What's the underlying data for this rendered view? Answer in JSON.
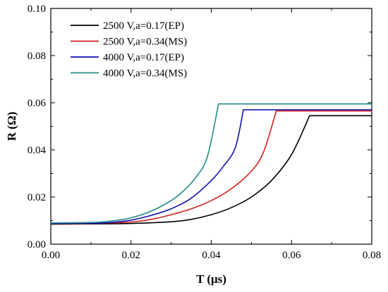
{
  "chart_data": {
    "type": "line",
    "title": "",
    "xlabel": "T (μs)",
    "ylabel": "R (Ω)",
    "xlim": [
      0.0,
      0.08
    ],
    "ylim": [
      0.0,
      0.1
    ],
    "xticks": [
      "0.00",
      "0.02",
      "0.04",
      "0.06",
      "0.08"
    ],
    "yticks": [
      "0.00",
      "0.02",
      "0.04",
      "0.06",
      "0.08",
      "0.10"
    ],
    "grid": false,
    "legend": "top-left",
    "series": [
      {
        "name": "2500 V,a=0.17(EP)",
        "color": "#000000",
        "x": [
          0.0,
          0.01,
          0.02,
          0.03,
          0.035,
          0.04,
          0.045,
          0.05,
          0.055,
          0.06,
          0.0645,
          0.07,
          0.08
        ],
        "y": [
          0.0085,
          0.0086,
          0.0088,
          0.0095,
          0.0105,
          0.0125,
          0.0155,
          0.02,
          0.027,
          0.038,
          0.0545,
          0.0545,
          0.0545
        ]
      },
      {
        "name": "2500 V,a=0.34(MS)",
        "color": "#d42020",
        "x": [
          0.0,
          0.01,
          0.02,
          0.025,
          0.03,
          0.035,
          0.04,
          0.045,
          0.05,
          0.053,
          0.0562,
          0.06,
          0.08
        ],
        "y": [
          0.0087,
          0.0088,
          0.0094,
          0.0105,
          0.0125,
          0.015,
          0.0185,
          0.0235,
          0.031,
          0.039,
          0.0565,
          0.0565,
          0.0565
        ]
      },
      {
        "name": "4000 V,a=0.17(EP)",
        "color": "#1010b0",
        "x": [
          0.0,
          0.01,
          0.015,
          0.02,
          0.025,
          0.03,
          0.035,
          0.04,
          0.043,
          0.046,
          0.048,
          0.06,
          0.08
        ],
        "y": [
          0.0088,
          0.0089,
          0.0092,
          0.0102,
          0.0122,
          0.015,
          0.0195,
          0.027,
          0.033,
          0.041,
          0.057,
          0.057,
          0.057
        ]
      },
      {
        "name": "4000 V,a=0.34(MS)",
        "color": "#208a8a",
        "x": [
          0.0,
          0.01,
          0.015,
          0.02,
          0.025,
          0.03,
          0.033,
          0.036,
          0.039,
          0.0418,
          0.06,
          0.08
        ],
        "y": [
          0.009,
          0.0092,
          0.0098,
          0.0112,
          0.014,
          0.0185,
          0.0225,
          0.028,
          0.037,
          0.0595,
          0.0595,
          0.0595
        ]
      }
    ]
  }
}
